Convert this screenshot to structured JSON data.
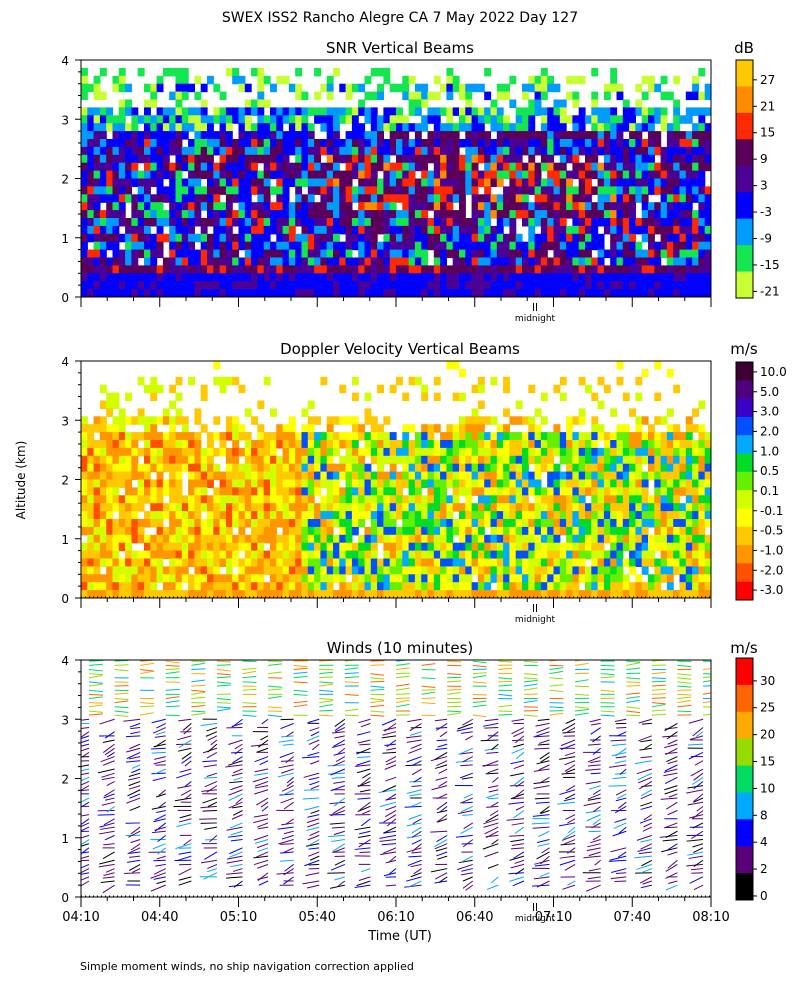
{
  "figure": {
    "title": "SWEX ISS2 Rancho Alegre CA   7 May 2022 Day 127",
    "ylabel": "Altitude (km)",
    "xlabel": "Time (UT)",
    "footnote": "Simple moment winds, no ship navigation correction applied",
    "midnight_label": "midnight"
  },
  "chart_data": [
    {
      "id": "snr",
      "type": "heatmap",
      "title": "SNR Vertical Beams",
      "ylabel": "Altitude (km)",
      "ylim": [
        0,
        4
      ],
      "yticks": [
        "0",
        "1",
        "2",
        "3",
        "4"
      ],
      "x_range_minutes": [
        0,
        240
      ],
      "colorbar": {
        "unit": "dB",
        "labels": [
          "27",
          "21",
          "15",
          "9",
          "3",
          "-3",
          "-9",
          "-15",
          "-21"
        ],
        "colors": [
          "#ffc800",
          "#ff8c00",
          "#ff2800",
          "#5a005a",
          "#4b0096",
          "#0000ff",
          "#009bff",
          "#14e650",
          "#c8ff32"
        ]
      },
      "colors_by_value": {
        "max_alt_km": 3.0,
        "top_band_alt_km": [
          3.2,
          3.8
        ],
        "enhanced_layer_alt_km": [
          1.4,
          2.6
        ],
        "surface_layer_alt_km": [
          0.2,
          0.5
        ]
      }
    },
    {
      "id": "velocity",
      "type": "heatmap",
      "title": "Doppler Velocity Vertical Beams",
      "ylabel": "Altitude (km)",
      "ylim": [
        0,
        4
      ],
      "yticks": [
        "0",
        "1",
        "2",
        "3",
        "4"
      ],
      "x_range_minutes": [
        0,
        240
      ],
      "colorbar": {
        "unit": "m/s",
        "labels": [
          "10.0",
          "5.0",
          "3.0",
          "2.0",
          "1.0",
          "0.5",
          "0.1",
          "-0.1",
          "-0.5",
          "-1.0",
          "-2.0",
          "-3.0"
        ],
        "colors": [
          "#3c0032",
          "#50007d",
          "#3c00c8",
          "#0050ff",
          "#00aaff",
          "#00dc28",
          "#64f000",
          "#d2ff00",
          "#ffff00",
          "#ffc800",
          "#ff9600",
          "#ff5000",
          "#ff0000"
        ]
      }
    },
    {
      "id": "winds",
      "type": "scatter",
      "title": "Winds (10 minutes)",
      "ylabel": "Altitude (km)",
      "ylim": [
        0,
        4
      ],
      "yticks": [
        "0",
        "1",
        "2",
        "3",
        "4"
      ],
      "x": [
        "04:10",
        "04:40",
        "05:10",
        "05:40",
        "06:10",
        "06:40",
        "07:10",
        "07:40",
        "08:10"
      ],
      "xlabel": "Time (UT)",
      "colorbar": {
        "unit": "m/s",
        "labels": [
          "30",
          "25",
          "20",
          "15",
          "10",
          "8",
          "4",
          "2",
          "0"
        ],
        "colors": [
          "#ff0000",
          "#ff6400",
          "#ffaa00",
          "#96dc00",
          "#00dc64",
          "#00aaff",
          "#0000ff",
          "#5a0078",
          "#000000"
        ]
      },
      "profiles_every_minutes": 10
    }
  ]
}
